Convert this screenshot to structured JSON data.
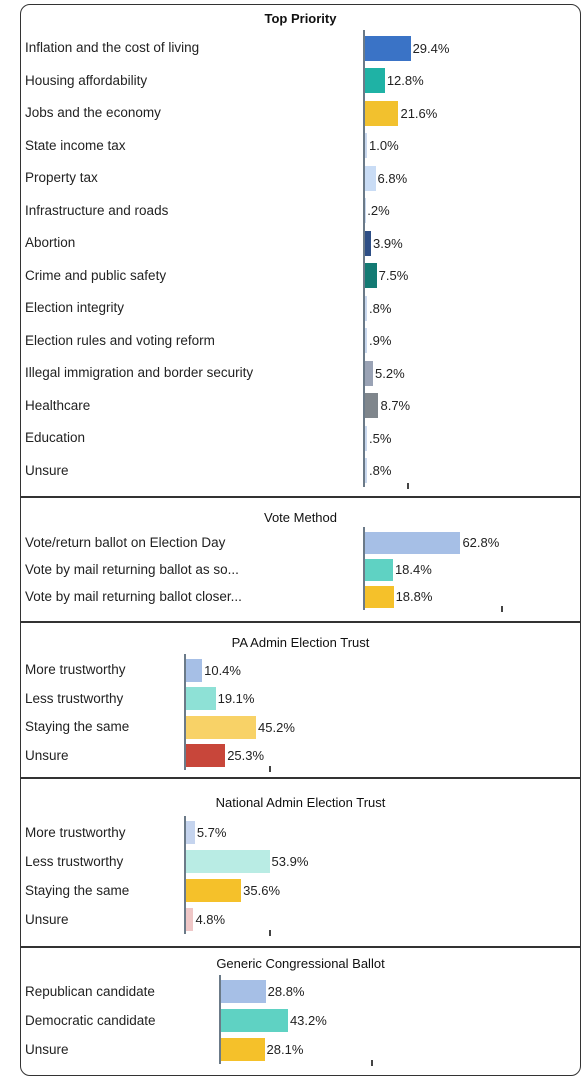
{
  "chart_data": [
    {
      "type": "bar",
      "orientation": "horizontal",
      "title": "Top Priority",
      "categories": [
        "Inflation and the cost of living",
        "Housing affordability",
        "Jobs and the economy",
        "State income tax",
        "Property tax",
        "Infrastructure and roads",
        "Abortion",
        "Crime and public safety",
        "Election integrity",
        "Election rules and voting reform",
        "Illegal immigration and border security",
        "Healthcare",
        "Education",
        "Unsure"
      ],
      "values": [
        29.4,
        12.8,
        21.6,
        1.0,
        6.8,
        0.2,
        3.9,
        7.5,
        0.8,
        0.9,
        5.2,
        8.7,
        0.5,
        0.8
      ],
      "value_labels": [
        "29.4%",
        "12.8%",
        "21.6%",
        "1.0%",
        "6.8%",
        ".2%",
        "3.9%",
        "7.5%",
        ".8%",
        ".9%",
        "5.2%",
        "8.7%",
        ".5%",
        ".8%"
      ],
      "colors": [
        "#3a73c6",
        "#1fb2a5",
        "#f2c12e",
        "#c9d8ee",
        "#c9dcf5",
        "#c9d8ee",
        "#2e4f86",
        "#137a73",
        "#c9d8ee",
        "#c9d8ee",
        "#9aa3b5",
        "#7f868c",
        "#c9d8ee",
        "#c9d8ee"
      ]
    },
    {
      "type": "bar",
      "orientation": "horizontal",
      "title": "Vote Method",
      "categories": [
        "Vote/return ballot on Election Day",
        "Vote by mail returning ballot as so...",
        "Vote by mail returning ballot closer..."
      ],
      "values": [
        62.8,
        18.4,
        18.8
      ],
      "value_labels": [
        "62.8%",
        "18.4%",
        "18.8%"
      ],
      "colors": [
        "#a6bfe6",
        "#5fd2c3",
        "#f5c12a"
      ]
    },
    {
      "type": "bar",
      "orientation": "horizontal",
      "title": "PA Admin Election Trust",
      "categories": [
        "More trustworthy",
        "Less trustworthy",
        "Staying the same",
        "Unsure"
      ],
      "values": [
        10.4,
        19.1,
        45.2,
        25.3
      ],
      "value_labels": [
        "10.4%",
        "19.1%",
        "45.2%",
        "25.3%"
      ],
      "colors": [
        "#a6bfe6",
        "#8ee1d6",
        "#f8d267",
        "#c8463a"
      ]
    },
    {
      "type": "bar",
      "orientation": "horizontal",
      "title": "National Admin Election Trust",
      "categories": [
        "More trustworthy",
        "Less trustworthy",
        "Staying the same",
        "Unsure"
      ],
      "values": [
        5.7,
        53.9,
        35.6,
        4.8
      ],
      "value_labels": [
        "5.7%",
        "53.9%",
        "35.6%",
        "4.8%"
      ],
      "colors": [
        "#c5d4ee",
        "#b9ece4",
        "#f5c12a",
        "#efc7c7"
      ]
    },
    {
      "type": "bar",
      "orientation": "horizontal",
      "title": "Generic Congressional Ballot",
      "categories": [
        "Republican candidate",
        "Democratic candidate",
        "Unsure"
      ],
      "values": [
        28.8,
        43.2,
        28.1
      ],
      "value_labels": [
        "28.8%",
        "43.2%",
        "28.1%"
      ],
      "colors": [
        "#a6bfe6",
        "#5fd2c3",
        "#f5c12a"
      ]
    }
  ]
}
